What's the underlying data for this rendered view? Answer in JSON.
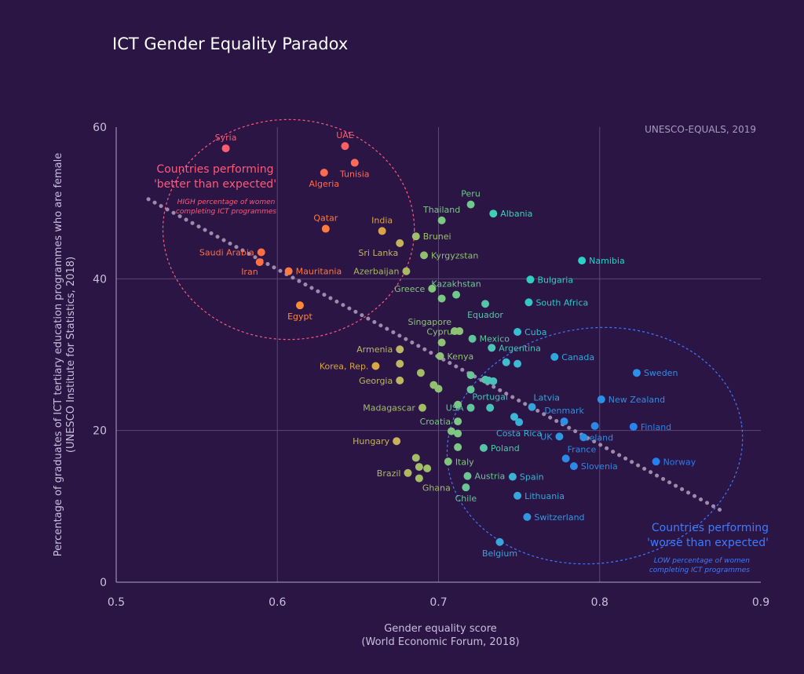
{
  "chart_data": {
    "type": "scatter",
    "title": "ICT Gender Equality Paradox",
    "source": "UNESCO-EQUALS, 2019",
    "xlabel": [
      "Gender equality score",
      "(World Economic Forum, 2018)"
    ],
    "ylabel": [
      "Percentage of graduates of ICT tertiary education programmes who are female",
      "(UNESCO Institute for Statistics, 2018)"
    ],
    "xlim": [
      0.5,
      0.9
    ],
    "ylim": [
      0,
      60
    ],
    "xticks": [
      0.5,
      0.6,
      0.7,
      0.8,
      0.9
    ],
    "yticks": [
      0,
      20,
      40,
      60
    ],
    "trendline": [
      [
        0.52,
        50.5
      ],
      [
        0.875,
        9.5
      ]
    ],
    "annotations": {
      "better": {
        "title": [
          "Countries performing",
          "'better than expected'"
        ],
        "subtitle": [
          "HIGH percentage of women",
          "completing ICT programmes"
        ],
        "color": "#ff5a7a",
        "ellipse": {
          "cx": 0.607,
          "cy": 46.5,
          "rx": 0.078,
          "ry": 14.5
        }
      },
      "worse": {
        "title": [
          "Countries performing",
          "'worse than expected'"
        ],
        "subtitle": [
          "LOW percentage of women",
          "completing ICT programmes"
        ],
        "color": "#3d7bff",
        "ellipse": {
          "cx": 0.797,
          "cy": 18,
          "rx": 0.092,
          "ry": 15.5
        }
      }
    },
    "points": [
      {
        "label": "Syria",
        "x": 0.568,
        "y": 57.2,
        "color": "#ff5a6e",
        "pos": "above"
      },
      {
        "label": "UAE",
        "x": 0.642,
        "y": 57.5,
        "color": "#ff5f63",
        "pos": "above"
      },
      {
        "label": "Tunisia",
        "x": 0.648,
        "y": 55.3,
        "color": "#ff6a5a",
        "pos": "below"
      },
      {
        "label": "Algeria",
        "x": 0.629,
        "y": 54.0,
        "color": "#ff6a52",
        "pos": "below"
      },
      {
        "label": "Qatar",
        "x": 0.63,
        "y": 46.6,
        "color": "#ff7a3f",
        "pos": "above"
      },
      {
        "label": "India",
        "x": 0.665,
        "y": 46.3,
        "color": "#d9a347",
        "pos": "above"
      },
      {
        "label": "Saudi Arabia",
        "x": 0.59,
        "y": 43.5,
        "color": "#ff6f45",
        "pos": "left"
      },
      {
        "label": "Iran",
        "x": 0.589,
        "y": 42.2,
        "color": "#ff6f45",
        "pos": "below-left"
      },
      {
        "label": "Mauritania",
        "x": 0.607,
        "y": 41.0,
        "color": "#ff7a3f",
        "pos": "right"
      },
      {
        "label": "Egypt",
        "x": 0.614,
        "y": 36.5,
        "color": "#ff8a35",
        "pos": "below"
      },
      {
        "label": "Sri Lanka",
        "x": 0.676,
        "y": 44.7,
        "color": "#c6b25a",
        "pos": "below-left"
      },
      {
        "label": "Brunei",
        "x": 0.686,
        "y": 45.6,
        "color": "#9fc06a",
        "pos": "right"
      },
      {
        "label": "Kyrgyzstan",
        "x": 0.691,
        "y": 43.1,
        "color": "#8fc070",
        "pos": "right"
      },
      {
        "label": "Azerbaijan",
        "x": 0.68,
        "y": 41.0,
        "color": "#a8bb60",
        "pos": "left"
      },
      {
        "label": "Peru",
        "x": 0.72,
        "y": 49.8,
        "color": "#6fc98a",
        "pos": "above"
      },
      {
        "label": "Thailand",
        "x": 0.702,
        "y": 47.7,
        "color": "#7cc784",
        "pos": "above"
      },
      {
        "label": "Albania",
        "x": 0.734,
        "y": 48.6,
        "color": "#3fd0b3",
        "pos": "right"
      },
      {
        "label": "Namibia",
        "x": 0.789,
        "y": 42.4,
        "color": "#28d2c8",
        "pos": "right"
      },
      {
        "label": "Bulgaria",
        "x": 0.757,
        "y": 39.9,
        "color": "#2fcfc0",
        "pos": "right"
      },
      {
        "label": "Kazakhstan",
        "x": 0.711,
        "y": 37.9,
        "color": "#6ec98c",
        "pos": "above"
      },
      {
        "label": "Greece",
        "x": 0.696,
        "y": 38.7,
        "color": "#84c57c",
        "pos": "left"
      },
      {
        "label": "",
        "x": 0.702,
        "y": 37.4,
        "color": "#7cc784"
      },
      {
        "label": "South Africa",
        "x": 0.756,
        "y": 36.9,
        "color": "#33c6c6",
        "pos": "right"
      },
      {
        "label": "Equador",
        "x": 0.729,
        "y": 36.7,
        "color": "#52c7a8",
        "pos": "below"
      },
      {
        "label": "Singapore",
        "x": 0.71,
        "y": 33.1,
        "color": "#8ec275",
        "pos": "above-left"
      },
      {
        "label": "",
        "x": 0.713,
        "y": 33.1,
        "color": "#8ec275"
      },
      {
        "label": "Cuba",
        "x": 0.749,
        "y": 33.0,
        "color": "#36bfd0",
        "pos": "right"
      },
      {
        "label": "Mexico",
        "x": 0.721,
        "y": 32.1,
        "color": "#5fc59b",
        "pos": "right"
      },
      {
        "label": "Cyprus",
        "x": 0.702,
        "y": 31.6,
        "color": "#8ec275",
        "pos": "above"
      },
      {
        "label": "Argentina",
        "x": 0.733,
        "y": 30.9,
        "color": "#4fc1b5",
        "pos": "right"
      },
      {
        "label": "Armenia",
        "x": 0.676,
        "y": 30.7,
        "color": "#bdb760",
        "pos": "left"
      },
      {
        "label": "Kenya",
        "x": 0.701,
        "y": 29.8,
        "color": "#8fc276",
        "pos": "right"
      },
      {
        "label": "Canada",
        "x": 0.772,
        "y": 29.7,
        "color": "#2fa9dd",
        "pos": "right"
      },
      {
        "label": "Korea, Rep.",
        "x": 0.661,
        "y": 28.5,
        "color": "#d9a744",
        "pos": "left"
      },
      {
        "label": "",
        "x": 0.676,
        "y": 28.8,
        "color": "#bdb760"
      },
      {
        "label": "",
        "x": 0.742,
        "y": 29.0,
        "color": "#44bccb"
      },
      {
        "label": "",
        "x": 0.749,
        "y": 28.8,
        "color": "#3fb8d4"
      },
      {
        "label": "Sweden",
        "x": 0.823,
        "y": 27.6,
        "color": "#2a90e8",
        "pos": "right"
      },
      {
        "label": "",
        "x": 0.689,
        "y": 27.6,
        "color": "#a2bd66"
      },
      {
        "label": "",
        "x": 0.72,
        "y": 27.3,
        "color": "#6ac694"
      },
      {
        "label": "Georgia",
        "x": 0.676,
        "y": 26.6,
        "color": "#bdb760",
        "pos": "left"
      },
      {
        "label": "",
        "x": 0.729,
        "y": 26.7,
        "color": "#56c4a8"
      },
      {
        "label": "",
        "x": 0.731,
        "y": 26.6,
        "color": "#4fc1b5"
      },
      {
        "label": "",
        "x": 0.734,
        "y": 26.5,
        "color": "#4cbfbd"
      },
      {
        "label": "",
        "x": 0.697,
        "y": 26.0,
        "color": "#96c070"
      },
      {
        "label": "",
        "x": 0.7,
        "y": 25.5,
        "color": "#8fc276"
      },
      {
        "label": "",
        "x": 0.72,
        "y": 25.4,
        "color": "#65c597"
      },
      {
        "label": "Latvia",
        "x": 0.758,
        "y": 23.1,
        "color": "#37a3d8",
        "pos": "above-right"
      },
      {
        "label": "Portugal",
        "x": 0.732,
        "y": 23.0,
        "color": "#4bc0bb",
        "pos": "above"
      },
      {
        "label": "New Zealand",
        "x": 0.801,
        "y": 24.1,
        "color": "#2a8fe6",
        "pos": "right"
      },
      {
        "label": "Madagascar",
        "x": 0.69,
        "y": 23.0,
        "color": "#a2bd66",
        "pos": "left"
      },
      {
        "label": "USA",
        "x": 0.72,
        "y": 23.0,
        "color": "#5fc59b",
        "pos": "left"
      },
      {
        "label": "",
        "x": 0.712,
        "y": 23.4,
        "color": "#7cc784"
      },
      {
        "label": "Denmark",
        "x": 0.778,
        "y": 21.2,
        "color": "#2f8fe2",
        "pos": "above"
      },
      {
        "label": "Croatia",
        "x": 0.712,
        "y": 21.2,
        "color": "#7cc784",
        "pos": "left"
      },
      {
        "label": "",
        "x": 0.747,
        "y": 21.8,
        "color": "#3fb8d4"
      },
      {
        "label": "Costa Rica",
        "x": 0.75,
        "y": 21.1,
        "color": "#3aafd6",
        "pos": "below"
      },
      {
        "label": "Finland",
        "x": 0.821,
        "y": 20.5,
        "color": "#2685ea",
        "pos": "right"
      },
      {
        "label": "",
        "x": 0.797,
        "y": 20.6,
        "color": "#2c88e6"
      },
      {
        "label": "",
        "x": 0.708,
        "y": 19.9,
        "color": "#7fc47f"
      },
      {
        "label": "",
        "x": 0.712,
        "y": 19.6,
        "color": "#7cc784"
      },
      {
        "label": "UK",
        "x": 0.775,
        "y": 19.2,
        "color": "#2f98e0",
        "pos": "left"
      },
      {
        "label": "Iceland",
        "x": 0.79,
        "y": 19.1,
        "color": "#2c8ee4",
        "pos": "left-over"
      },
      {
        "label": "Hungary",
        "x": 0.674,
        "y": 18.6,
        "color": "#c6b25a",
        "pos": "left"
      },
      {
        "label": "",
        "x": 0.712,
        "y": 17.8,
        "color": "#7cc784"
      },
      {
        "label": "Poland",
        "x": 0.728,
        "y": 17.7,
        "color": "#56c4a8",
        "pos": "right"
      },
      {
        "label": "France",
        "x": 0.779,
        "y": 16.3,
        "color": "#3088e4",
        "pos": "above-right"
      },
      {
        "label": "Norway",
        "x": 0.835,
        "y": 15.9,
        "color": "#247ff0",
        "pos": "right"
      },
      {
        "label": "Slovenia",
        "x": 0.784,
        "y": 15.3,
        "color": "#2f87e6",
        "pos": "right"
      },
      {
        "label": "",
        "x": 0.686,
        "y": 16.4,
        "color": "#a2bd66"
      },
      {
        "label": "Italy",
        "x": 0.706,
        "y": 15.9,
        "color": "#82c47c",
        "pos": "right"
      },
      {
        "label": "",
        "x": 0.688,
        "y": 15.2,
        "color": "#a2bd66"
      },
      {
        "label": "",
        "x": 0.693,
        "y": 15.0,
        "color": "#9fbe68"
      },
      {
        "label": "Brazil",
        "x": 0.681,
        "y": 14.4,
        "color": "#b2b95d",
        "pos": "left"
      },
      {
        "label": "Ghana",
        "x": 0.688,
        "y": 13.7,
        "color": "#a2bd66",
        "pos": "below-right"
      },
      {
        "label": "Austria",
        "x": 0.718,
        "y": 14.0,
        "color": "#6ac694",
        "pos": "right"
      },
      {
        "label": "Spain",
        "x": 0.746,
        "y": 13.9,
        "color": "#3bb4d2",
        "pos": "right"
      },
      {
        "label": "Chile",
        "x": 0.717,
        "y": 12.5,
        "color": "#6ac694",
        "pos": "below"
      },
      {
        "label": "Lithuania",
        "x": 0.749,
        "y": 11.4,
        "color": "#36a7d8",
        "pos": "right"
      },
      {
        "label": "Switzerland",
        "x": 0.755,
        "y": 8.6,
        "color": "#3197e0",
        "pos": "right"
      },
      {
        "label": "Belgium",
        "x": 0.738,
        "y": 5.3,
        "color": "#3aa4dc",
        "pos": "below"
      }
    ]
  }
}
